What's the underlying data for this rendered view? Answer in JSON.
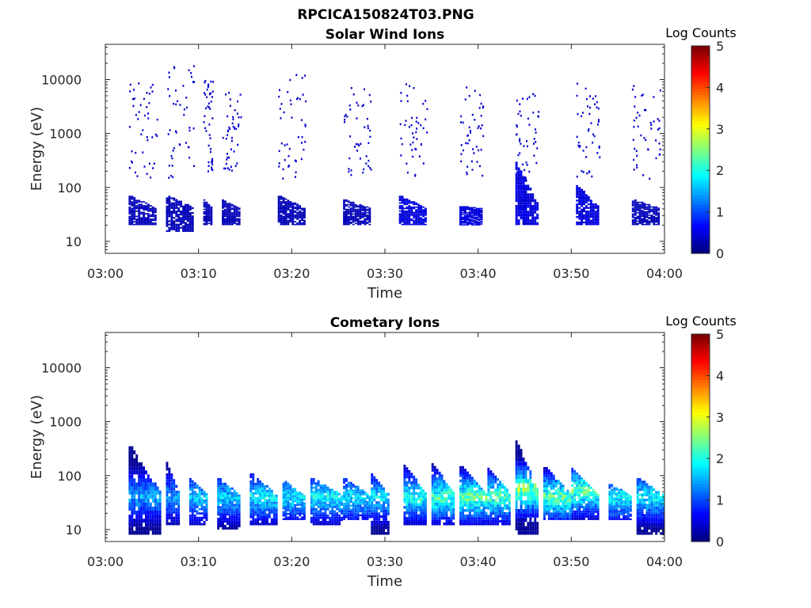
{
  "figure": {
    "title": "RPCICA150824T03.PNG"
  },
  "colormap": "jet",
  "chart_data": [
    {
      "type": "heatmap",
      "title": "Solar Wind Ions",
      "xlabel": "Time",
      "ylabel": "Energy (eV)",
      "x_ticks": [
        "03:00",
        "03:10",
        "03:20",
        "03:30",
        "03:40",
        "03:50",
        "04:00"
      ],
      "xlim_minutes": [
        0,
        60
      ],
      "y_scale": "log",
      "y_ticks": [
        "10",
        "100",
        "1000",
        "10000"
      ],
      "ylim": [
        6,
        45000
      ],
      "colorbar": {
        "label": "Log Counts",
        "ticks": [
          "0",
          "1",
          "2",
          "3",
          "4",
          "5"
        ],
        "range": [
          0,
          5
        ]
      },
      "bursts": [
        {
          "t_start": 2.5,
          "t_end": 5.5,
          "emin": 20,
          "emax": 70,
          "level": 0.3,
          "peak": null,
          "scatter": [
            150,
            9000
          ]
        },
        {
          "t_start": 6.5,
          "t_end": 9.5,
          "emin": 15,
          "emax": 70,
          "level": 0.3,
          "peak": null,
          "scatter": [
            150,
            20000
          ]
        },
        {
          "t_start": 10.5,
          "t_end": 11.5,
          "emin": 20,
          "emax": 60,
          "level": 0.3,
          "peak": null,
          "scatter": [
            200,
            10000
          ]
        },
        {
          "t_start": 12.5,
          "t_end": 14.5,
          "emin": 20,
          "emax": 60,
          "level": 0.3,
          "peak": null,
          "scatter": [
            200,
            6000
          ]
        },
        {
          "t_start": 18.5,
          "t_end": 21.5,
          "emin": 20,
          "emax": 70,
          "level": 0.3,
          "peak": null,
          "scatter": [
            150,
            15000
          ]
        },
        {
          "t_start": 25.5,
          "t_end": 28.5,
          "emin": 20,
          "emax": 60,
          "level": 0.3,
          "peak": null,
          "scatter": [
            150,
            8000
          ]
        },
        {
          "t_start": 31.5,
          "t_end": 34.5,
          "emin": 20,
          "emax": 70,
          "level": 0.5,
          "peak": null,
          "scatter": [
            150,
            9000
          ]
        },
        {
          "t_start": 38,
          "t_end": 40.5,
          "emin": 20,
          "emax": 45,
          "level": 0.5,
          "peak": null,
          "scatter": [
            150,
            8000
          ]
        },
        {
          "t_start": 44,
          "t_end": 46.5,
          "emin": 20,
          "emax": 300,
          "level": 0.5,
          "peak": null,
          "scatter": [
            150,
            7000
          ]
        },
        {
          "t_start": 50.5,
          "t_end": 53,
          "emin": 20,
          "emax": 110,
          "level": 0.5,
          "peak": null,
          "scatter": [
            150,
            9000
          ]
        },
        {
          "t_start": 56.5,
          "t_end": 59.5,
          "emin": 20,
          "emax": 60,
          "level": 0.3,
          "peak": null,
          "scatter": [
            150,
            8000
          ]
        }
      ]
    },
    {
      "type": "heatmap",
      "title": "Cometary Ions",
      "xlabel": "Time",
      "ylabel": "Energy (eV)",
      "x_ticks": [
        "03:00",
        "03:10",
        "03:20",
        "03:30",
        "03:40",
        "03:50",
        "04:00"
      ],
      "xlim_minutes": [
        0,
        60
      ],
      "y_scale": "log",
      "y_ticks": [
        "10",
        "100",
        "1000",
        "10000"
      ],
      "ylim": [
        6,
        45000
      ],
      "colorbar": {
        "label": "Log Counts",
        "ticks": [
          "0",
          "1",
          "2",
          "3",
          "4",
          "5"
        ],
        "range": [
          0,
          5
        ]
      },
      "bursts": [
        {
          "t_start": 2.5,
          "t_end": 6,
          "emin": 8,
          "emax": 350,
          "level": 1.6,
          "peak": 38,
          "scatter": null
        },
        {
          "t_start": 6.5,
          "t_end": 8,
          "emin": 12,
          "emax": 180,
          "level": 1.5,
          "peak": 38,
          "scatter": null
        },
        {
          "t_start": 9,
          "t_end": 11,
          "emin": 12,
          "emax": 90,
          "level": 1.8,
          "peak": 38,
          "scatter": null
        },
        {
          "t_start": 12,
          "t_end": 14.5,
          "emin": 10,
          "emax": 90,
          "level": 1.8,
          "peak": 38,
          "scatter": null
        },
        {
          "t_start": 15.5,
          "t_end": 18.5,
          "emin": 12,
          "emax": 110,
          "level": 2.0,
          "peak": 38,
          "scatter": null
        },
        {
          "t_start": 19,
          "t_end": 21.5,
          "emin": 15,
          "emax": 80,
          "level": 1.9,
          "peak": 38,
          "scatter": null
        },
        {
          "t_start": 22,
          "t_end": 25.5,
          "emin": 12,
          "emax": 90,
          "level": 2.0,
          "peak": 38,
          "scatter": null
        },
        {
          "t_start": 25.5,
          "t_end": 28.5,
          "emin": 15,
          "emax": 90,
          "level": 1.9,
          "peak": 38,
          "scatter": null
        },
        {
          "t_start": 28.5,
          "t_end": 30.5,
          "emin": 8,
          "emax": 110,
          "level": 1.9,
          "peak": 38,
          "scatter": null
        },
        {
          "t_start": 32,
          "t_end": 34.5,
          "emin": 12,
          "emax": 160,
          "level": 2.2,
          "peak": 38,
          "scatter": null
        },
        {
          "t_start": 35,
          "t_end": 37.5,
          "emin": 12,
          "emax": 170,
          "level": 2.4,
          "peak": 38,
          "scatter": null
        },
        {
          "t_start": 38,
          "t_end": 41,
          "emin": 12,
          "emax": 150,
          "level": 2.5,
          "peak": 38,
          "scatter": null
        },
        {
          "t_start": 41,
          "t_end": 43.5,
          "emin": 12,
          "emax": 140,
          "level": 2.4,
          "peak": 38,
          "scatter": null
        },
        {
          "t_start": 44,
          "t_end": 46.5,
          "emin": 8,
          "emax": 450,
          "level": 2.7,
          "peak": 50,
          "scatter": null
        },
        {
          "t_start": 47,
          "t_end": 50,
          "emin": 15,
          "emax": 160,
          "level": 2.5,
          "peak": 38,
          "scatter": null
        },
        {
          "t_start": 50,
          "t_end": 53,
          "emin": 15,
          "emax": 140,
          "level": 2.5,
          "peak": 50,
          "scatter": null
        },
        {
          "t_start": 54,
          "t_end": 56.5,
          "emin": 15,
          "emax": 70,
          "level": 2.0,
          "peak": 38,
          "scatter": null
        },
        {
          "t_start": 57,
          "t_end": 60,
          "emin": 8,
          "emax": 90,
          "level": 2.0,
          "peak": 38,
          "scatter": null
        }
      ]
    }
  ]
}
